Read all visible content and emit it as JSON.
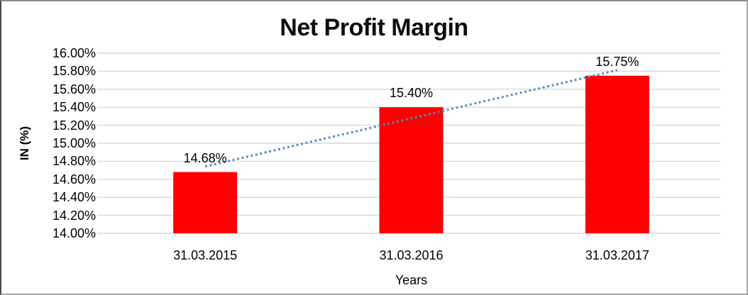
{
  "window": {
    "background": "#FFFFFF",
    "border_color": "#A6A6A6"
  },
  "chart_data": {
    "type": "bar",
    "title": "Net Profit Margin",
    "xlabel": "Years",
    "ylabel": "IN (%)",
    "categories": [
      "31.03.2015",
      "31.03.2016",
      "31.03.2017"
    ],
    "values": [
      14.68,
      15.4,
      15.75
    ],
    "data_labels": [
      "14.68%",
      "15.40%",
      "15.75%"
    ],
    "ylim": [
      14.0,
      16.0
    ],
    "ytick_step": 0.2,
    "ytick_labels": [
      "14.00%",
      "14.20%",
      "14.40%",
      "14.60%",
      "14.80%",
      "15.00%",
      "15.20%",
      "15.40%",
      "15.60%",
      "15.80%",
      "16.00%"
    ],
    "grid": true,
    "legend_position": "none",
    "bar_color": "#FF0000",
    "gridline_color": "#D9D9D9",
    "text_color": "#000000",
    "trendline": {
      "type": "linear",
      "style": "dotted",
      "color": "#4E86C8"
    }
  }
}
